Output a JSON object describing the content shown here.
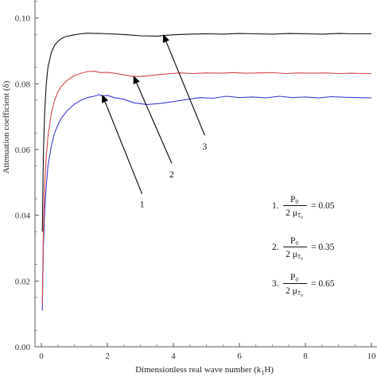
{
  "chart_data": {
    "type": "line",
    "title": "",
    "xlabel": "Dimensionless real wave number (k",
    "xlabel_sub": "1",
    "xlabel_tail": "H)",
    "ylabel": "Attenuation coefficient (δ)",
    "xlim": [
      0,
      10
    ],
    "ylim": [
      0.0,
      0.105
    ],
    "xticks": [
      "0",
      "2",
      "4",
      "6",
      "8",
      "10"
    ],
    "yticks": [
      "0.00",
      "0.02",
      "0.04",
      "0.06",
      "0.08",
      "0.10"
    ],
    "grid": false,
    "series": [
      {
        "label_id": "1",
        "color": "#3b3bd1",
        "x": [
          0.03,
          0.06,
          0.1,
          0.15,
          0.2,
          0.3,
          0.4,
          0.5,
          0.6,
          0.8,
          1.0,
          1.2,
          1.4,
          1.6,
          1.75,
          1.85,
          2.0,
          2.2,
          2.5,
          2.8,
          3.2,
          3.6,
          4.0,
          4.4,
          4.8,
          5.2,
          5.6,
          6.0,
          6.4,
          6.8,
          7.2,
          7.6,
          8.0,
          8.4,
          8.8,
          9.2,
          9.6,
          10.0
        ],
        "y": [
          0.011,
          0.03,
          0.041,
          0.049,
          0.055,
          0.061,
          0.065,
          0.0675,
          0.0695,
          0.072,
          0.0738,
          0.075,
          0.0758,
          0.0762,
          0.0767,
          0.0762,
          0.0765,
          0.0758,
          0.0753,
          0.0742,
          0.0737,
          0.074,
          0.0746,
          0.0752,
          0.0758,
          0.0756,
          0.0762,
          0.0758,
          0.076,
          0.0757,
          0.0762,
          0.0758,
          0.076,
          0.0757,
          0.0761,
          0.0759,
          0.0758,
          0.0757
        ]
      },
      {
        "label_id": "2",
        "color": "#d84545",
        "x": [
          0.03,
          0.06,
          0.1,
          0.15,
          0.2,
          0.3,
          0.4,
          0.5,
          0.6,
          0.8,
          1.0,
          1.2,
          1.4,
          1.6,
          1.8,
          2.0,
          2.2,
          2.5,
          2.8,
          3.0,
          3.4,
          3.8,
          4.2,
          4.6,
          5.0,
          5.4,
          5.8,
          6.2,
          6.6,
          7.0,
          7.4,
          7.8,
          8.2,
          8.6,
          9.0,
          9.4,
          9.8,
          10.0
        ],
        "y": [
          0.013,
          0.035,
          0.049,
          0.058,
          0.064,
          0.071,
          0.075,
          0.0775,
          0.0792,
          0.0812,
          0.0825,
          0.0832,
          0.0837,
          0.0838,
          0.0834,
          0.0835,
          0.0832,
          0.0827,
          0.0822,
          0.0822,
          0.0826,
          0.083,
          0.0833,
          0.0831,
          0.0833,
          0.0832,
          0.0834,
          0.0832,
          0.0833,
          0.0834,
          0.0831,
          0.0833,
          0.0832,
          0.0833,
          0.0831,
          0.0832,
          0.0831,
          0.0831
        ]
      },
      {
        "label_id": "3",
        "color": "#111111",
        "x": [
          0.03,
          0.06,
          0.1,
          0.15,
          0.2,
          0.3,
          0.4,
          0.5,
          0.6,
          0.7,
          0.8,
          1.0,
          1.2,
          1.4,
          1.6,
          1.8,
          2.0,
          2.3,
          2.6,
          3.0,
          3.5,
          4.0,
          4.5,
          5.0,
          5.5,
          6.0,
          6.5,
          7.0,
          7.5,
          8.0,
          8.5,
          9.0,
          9.5,
          10.0
        ],
        "y": [
          0.035,
          0.058,
          0.071,
          0.08,
          0.085,
          0.0895,
          0.0917,
          0.0929,
          0.0937,
          0.0942,
          0.0945,
          0.0949,
          0.0952,
          0.0954,
          0.0953,
          0.0953,
          0.0952,
          0.0951,
          0.0949,
          0.0946,
          0.0945,
          0.0949,
          0.0951,
          0.0952,
          0.0951,
          0.0953,
          0.0952,
          0.0951,
          0.0953,
          0.0952,
          0.0951,
          0.0953,
          0.0952,
          0.0952
        ]
      }
    ],
    "annotations": [
      {
        "label": "1",
        "arrow_tip": [
          1.85,
          0.0765
        ]
      },
      {
        "label": "2",
        "arrow_tip": [
          2.8,
          0.0822
        ]
      },
      {
        "label": "3",
        "arrow_tip": [
          3.7,
          0.0948
        ]
      }
    ],
    "legend": [
      {
        "index": "1.",
        "num": "P",
        "num_sub": "0",
        "den": "2 μ",
        "den_sub": "T",
        "den_sub2": "0",
        "value": "= 0.05"
      },
      {
        "index": "2.",
        "num": "P",
        "num_sub": "0",
        "den": "2 μ",
        "den_sub": "T",
        "den_sub2": "0",
        "value": "= 0.35"
      },
      {
        "index": "3.",
        "num": "P",
        "num_sub": "0",
        "den": "2 μ",
        "den_sub": "T",
        "den_sub2": "0",
        "value": "= 0.65"
      }
    ]
  }
}
